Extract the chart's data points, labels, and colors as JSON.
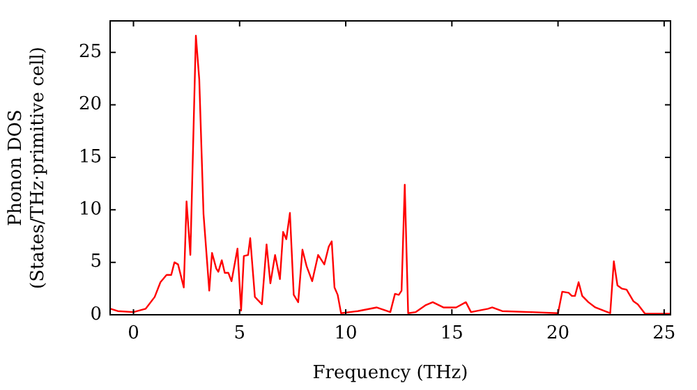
{
  "chart_data": {
    "type": "line",
    "xlabel": "Frequency (THz)",
    "ylabel": "Phonon DOS\n(States/THz·primitive cell)",
    "xlim": [
      -1.1,
      25.3
    ],
    "ylim": [
      0,
      28
    ],
    "xticks": [
      0,
      5,
      10,
      15,
      20,
      25
    ],
    "yticks": [
      0,
      5,
      10,
      15,
      20,
      25
    ],
    "grid": false,
    "legend": false,
    "marker": "none",
    "line_style": "solid",
    "series": [
      {
        "color": "#ff0000",
        "x": [
          -1.08,
          -0.74,
          0,
          0.57,
          1.0,
          1.27,
          1.56,
          1.78,
          1.93,
          2.1,
          2.37,
          2.5,
          2.68,
          2.94,
          3.1,
          3.3,
          3.57,
          3.7,
          3.9,
          4.0,
          4.16,
          4.3,
          4.47,
          4.62,
          4.9,
          5.07,
          5.2,
          5.4,
          5.5,
          5.72,
          6.05,
          6.27,
          6.45,
          6.67,
          6.9,
          7.05,
          7.2,
          7.37,
          7.55,
          7.76,
          7.96,
          8.16,
          8.42,
          8.7,
          8.99,
          9.2,
          9.34,
          9.47,
          9.62,
          9.78,
          10.57,
          11.45,
          12.1,
          12.32,
          12.5,
          12.63,
          12.78,
          12.94,
          13.3,
          13.75,
          14.1,
          14.6,
          15.2,
          15.66,
          15.9,
          16.7,
          16.9,
          17.37,
          18.68,
          20.0,
          20.2,
          20.5,
          20.65,
          20.8,
          20.97,
          21.14,
          21.43,
          21.76,
          22.2,
          22.46,
          22.63,
          22.8,
          23.0,
          23.23,
          23.55,
          23.76,
          24.1,
          25.3
        ],
        "values": [
          0.57,
          0.35,
          0.26,
          0.57,
          1.7,
          3.1,
          3.8,
          3.8,
          5.0,
          4.8,
          2.6,
          10.8,
          5.7,
          26.6,
          22.4,
          9.6,
          2.3,
          5.9,
          4.4,
          4.1,
          5.2,
          4.0,
          4.0,
          3.2,
          6.3,
          0.4,
          5.6,
          5.7,
          7.3,
          1.7,
          1.0,
          6.7,
          3.0,
          5.7,
          3.4,
          7.9,
          7.2,
          9.7,
          1.9,
          1.2,
          6.2,
          4.6,
          3.2,
          5.7,
          4.8,
          6.5,
          7.0,
          2.6,
          1.9,
          0.15,
          0.35,
          0.7,
          0.26,
          2.0,
          1.9,
          2.3,
          12.4,
          0.15,
          0.26,
          0.9,
          1.2,
          0.7,
          0.7,
          1.2,
          0.26,
          0.57,
          0.7,
          0.35,
          0.26,
          0.15,
          2.2,
          2.1,
          1.8,
          1.8,
          3.1,
          1.8,
          1.2,
          0.7,
          0.35,
          0.15,
          5.1,
          2.8,
          2.5,
          2.4,
          1.3,
          1.0,
          0.1,
          0.1
        ]
      }
    ]
  }
}
